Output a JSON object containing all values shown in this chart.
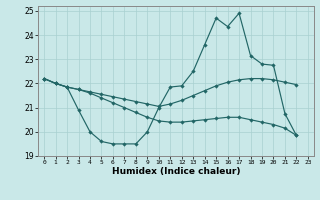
{
  "xlabel": "Humidex (Indice chaleur)",
  "xlim": [
    -0.5,
    23.5
  ],
  "ylim": [
    19,
    25.2
  ],
  "yticks": [
    19,
    20,
    21,
    22,
    23,
    24,
    25
  ],
  "xticks": [
    0,
    1,
    2,
    3,
    4,
    5,
    6,
    7,
    8,
    9,
    10,
    11,
    12,
    13,
    14,
    15,
    16,
    17,
    18,
    19,
    20,
    21,
    22,
    23
  ],
  "bg_color": "#c9e8e8",
  "line_color": "#226666",
  "series1_x": [
    0,
    1,
    2,
    3,
    4,
    5,
    6,
    7,
    8,
    9,
    10,
    11,
    12,
    13,
    14,
    15,
    16,
    17,
    18,
    19,
    20,
    21,
    22
  ],
  "series1_y": [
    22.2,
    22.0,
    21.85,
    20.9,
    20.0,
    19.6,
    19.5,
    19.5,
    19.5,
    20.0,
    21.0,
    21.85,
    21.9,
    22.5,
    23.6,
    24.7,
    24.35,
    24.9,
    23.15,
    22.8,
    22.75,
    20.75,
    19.85
  ],
  "series2_x": [
    0,
    1,
    2,
    3,
    4,
    5,
    6,
    7,
    8,
    9,
    10,
    11,
    12,
    13,
    14,
    15,
    16,
    17,
    18,
    19,
    20,
    21,
    22
  ],
  "series2_y": [
    22.2,
    22.0,
    21.85,
    21.75,
    21.65,
    21.55,
    21.45,
    21.35,
    21.25,
    21.15,
    21.05,
    21.15,
    21.3,
    21.5,
    21.7,
    21.9,
    22.05,
    22.15,
    22.2,
    22.2,
    22.15,
    22.05,
    21.95
  ],
  "series3_x": [
    0,
    1,
    2,
    3,
    4,
    5,
    6,
    7,
    8,
    9,
    10,
    11,
    12,
    13,
    14,
    15,
    16,
    17,
    18,
    19,
    20,
    21,
    22
  ],
  "series3_y": [
    22.2,
    22.0,
    21.85,
    21.75,
    21.6,
    21.4,
    21.2,
    21.0,
    20.8,
    20.6,
    20.45,
    20.4,
    20.4,
    20.45,
    20.5,
    20.55,
    20.6,
    20.6,
    20.5,
    20.4,
    20.3,
    20.15,
    19.85
  ]
}
